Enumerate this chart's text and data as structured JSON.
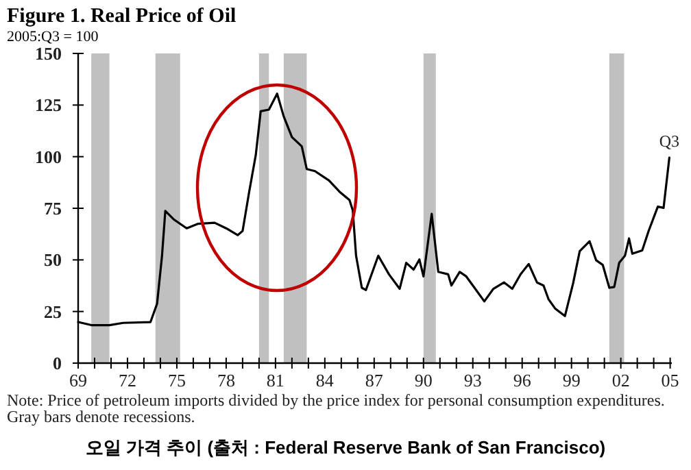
{
  "chart_data": {
    "type": "line",
    "title": "Figure 1. Real Price of Oil",
    "subtitle": "2005:Q3 = 100",
    "x": [
      1969.0,
      1969.8,
      1970.9,
      1971.75,
      1973.4,
      1973.8,
      1974.1,
      1974.3,
      1974.8,
      1975.6,
      1976.3,
      1977.3,
      1978.0,
      1978.7,
      1979.0,
      1979.4,
      1979.8,
      1980.1,
      1980.6,
      1981.1,
      1981.5,
      1982.0,
      1982.6,
      1982.9,
      1983.4,
      1984.25,
      1984.9,
      1985.5,
      1985.7,
      1985.9,
      1986.25,
      1986.5,
      1987.25,
      1987.9,
      1988.55,
      1988.95,
      1989.4,
      1989.75,
      1990.0,
      1990.5,
      1990.9,
      1991.5,
      1991.7,
      1992.2,
      1992.6,
      1993.1,
      1993.7,
      1994.25,
      1994.9,
      1995.4,
      1995.9,
      1996.4,
      1996.9,
      1997.3,
      1997.6,
      1998.0,
      1998.6,
      1999.1,
      1999.5,
      2000.1,
      2000.5,
      2000.9,
      2001.3,
      2001.6,
      2001.9,
      2002.25,
      2002.5,
      2002.7,
      2003.3,
      2003.7,
      2004.25,
      2004.6,
      2004.95
    ],
    "series": [
      {
        "color": "#000000",
        "values": [
          19.9,
          18.4,
          18.4,
          19.5,
          19.9,
          28.8,
          52,
          73.7,
          69.7,
          65.3,
          67.5,
          68,
          65.3,
          62,
          64,
          83,
          100.7,
          122,
          122.8,
          130.5,
          119.5,
          109.5,
          105,
          94,
          93,
          88.5,
          83,
          79,
          74,
          52,
          36.5,
          35.4,
          52,
          43,
          36,
          48.6,
          45.3,
          50.2,
          42,
          72.3,
          44.2,
          43,
          37.6,
          44.2,
          42,
          36.5,
          29.9,
          36,
          39.1,
          36,
          43,
          48,
          39.1,
          37.6,
          31,
          26.5,
          22.8,
          38.7,
          54.2,
          59,
          49.8,
          47.6,
          36.5,
          36.9,
          48.6,
          52,
          60.4,
          53,
          54.6,
          64.2,
          75.8,
          75.2,
          99.5
        ]
      }
    ],
    "xlim": [
      1969,
      2005.1
    ],
    "ylim": [
      0,
      150
    ],
    "yticks": [
      0,
      25,
      50,
      75,
      100,
      125,
      150
    ],
    "xticks": [
      {
        "value": 1969,
        "label": "69"
      },
      {
        "value": 1970,
        "label": null
      },
      {
        "value": 1971,
        "label": null
      },
      {
        "value": 1972,
        "label": "72"
      },
      {
        "value": 1973,
        "label": null
      },
      {
        "value": 1974,
        "label": null
      },
      {
        "value": 1975,
        "label": "75"
      },
      {
        "value": 1976,
        "label": null
      },
      {
        "value": 1977,
        "label": null
      },
      {
        "value": 1978,
        "label": "78"
      },
      {
        "value": 1979,
        "label": null
      },
      {
        "value": 1980,
        "label": null
      },
      {
        "value": 1981,
        "label": "81"
      },
      {
        "value": 1982,
        "label": null
      },
      {
        "value": 1983,
        "label": null
      },
      {
        "value": 1984,
        "label": "84"
      },
      {
        "value": 1985,
        "label": null
      },
      {
        "value": 1986,
        "label": null
      },
      {
        "value": 1987,
        "label": "87"
      },
      {
        "value": 1988,
        "label": null
      },
      {
        "value": 1989,
        "label": null
      },
      {
        "value": 1990,
        "label": "90"
      },
      {
        "value": 1991,
        "label": null
      },
      {
        "value": 1992,
        "label": null
      },
      {
        "value": 1993,
        "label": "93"
      },
      {
        "value": 1994,
        "label": null
      },
      {
        "value": 1995,
        "label": null
      },
      {
        "value": 1996,
        "label": "96"
      },
      {
        "value": 1997,
        "label": null
      },
      {
        "value": 1998,
        "label": null
      },
      {
        "value": 1999,
        "label": "99"
      },
      {
        "value": 2000,
        "label": null
      },
      {
        "value": 2001,
        "label": null
      },
      {
        "value": 2002,
        "label": "02"
      },
      {
        "value": 2003,
        "label": null
      },
      {
        "value": 2004,
        "label": null
      },
      {
        "value": 2005,
        "label": "05"
      }
    ],
    "bands": [
      {
        "axis": "x",
        "from": 1969.8,
        "to": 1970.9,
        "color": "#c0c0c0"
      },
      {
        "axis": "x",
        "from": 1973.7,
        "to": 1975.2,
        "color": "#c0c0c0"
      },
      {
        "axis": "x",
        "from": 1980.0,
        "to": 1980.6,
        "color": "#c0c0c0"
      },
      {
        "axis": "x",
        "from": 1981.5,
        "to": 1982.9,
        "color": "#c0c0c0"
      },
      {
        "axis": "x",
        "from": 1990.0,
        "to": 1990.75,
        "color": "#c0c0c0"
      },
      {
        "axis": "x",
        "from": 2001.3,
        "to": 2002.2,
        "color": "#c0c0c0"
      }
    ],
    "line_style": "solid",
    "annotations": [
      {
        "text": "Q3",
        "x": 2004.95,
        "y": 99.5
      },
      "Note: Price of petroleum imports divided by the price index for personal consumption expenditures. Gray bars denote recessions.",
      "오일 가격 추이 (출처 : Federal Reserve Bank of San Francisco)"
    ]
  }
}
